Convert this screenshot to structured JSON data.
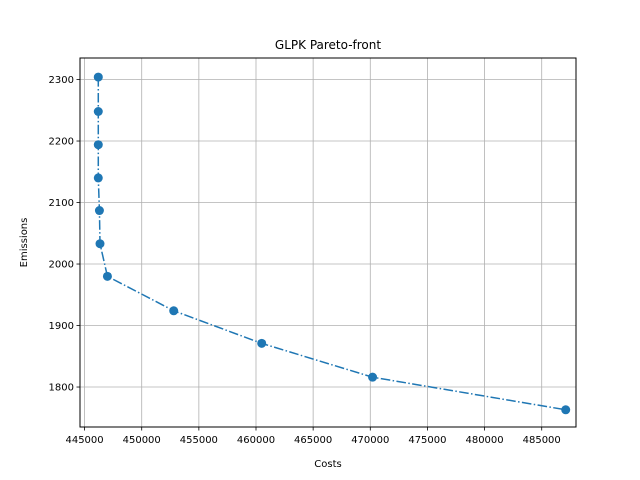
{
  "chart_data": {
    "type": "line",
    "title": "GLPK Pareto-front",
    "xlabel": "Costs",
    "ylabel": "Emissions",
    "xlim": [
      444600,
      488000
    ],
    "ylim": [
      1735,
      2335
    ],
    "xticks": [
      445000,
      450000,
      455000,
      460000,
      465000,
      470000,
      475000,
      480000,
      485000
    ],
    "yticks": [
      1800,
      1900,
      2000,
      2100,
      2200,
      2300
    ],
    "grid": true,
    "line_style": "dash-dot",
    "marker": "circle",
    "color": "#1f77b4",
    "series": [
      {
        "x": [
          446200,
          446200,
          446200,
          446200,
          446300,
          446350,
          447000,
          452800,
          460500,
          470200,
          487100
        ],
        "y": [
          2304,
          2248,
          2194,
          2140,
          2087,
          2033,
          1980,
          1924,
          1871,
          1816,
          1763
        ]
      }
    ]
  }
}
